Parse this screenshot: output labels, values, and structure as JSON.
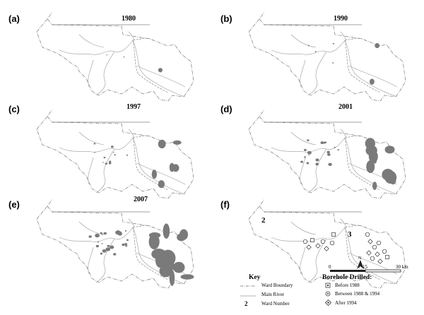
{
  "panels": [
    {
      "label": "(a)",
      "year": "1980",
      "level": 0.05
    },
    {
      "label": "(b)",
      "year": "1990",
      "level": 0.12
    },
    {
      "label": "(c)",
      "year": "1997",
      "level": 0.35
    },
    {
      "label": "(d)",
      "year": "2001",
      "level": 0.55
    },
    {
      "label": "(e)",
      "year": "2007",
      "level": 0.8
    },
    {
      "label": "(f)",
      "year": "",
      "level": 0
    }
  ],
  "ward_numbers": [
    "2",
    "3"
  ],
  "scale": {
    "ticks": [
      "0",
      "15",
      "30 km"
    ]
  },
  "north": "N",
  "key": {
    "title": "Key",
    "items": [
      {
        "symbol": "ward-boundary",
        "label": "Ward Boundary"
      },
      {
        "symbol": "main-river",
        "label": "Main River"
      },
      {
        "symbol": "2",
        "label": "Ward Number"
      }
    ]
  },
  "boreholes": {
    "title": "Borehole Drilled:",
    "items": [
      {
        "symbol": "square",
        "label": "Before 1988"
      },
      {
        "symbol": "circle",
        "label": "Between 1988 & 1994"
      },
      {
        "symbol": "diamond",
        "label": "After 1994"
      }
    ]
  },
  "colors": {
    "settlement": "#7a7a7a",
    "boundary": "#777777",
    "river": "#9a9a9a"
  }
}
